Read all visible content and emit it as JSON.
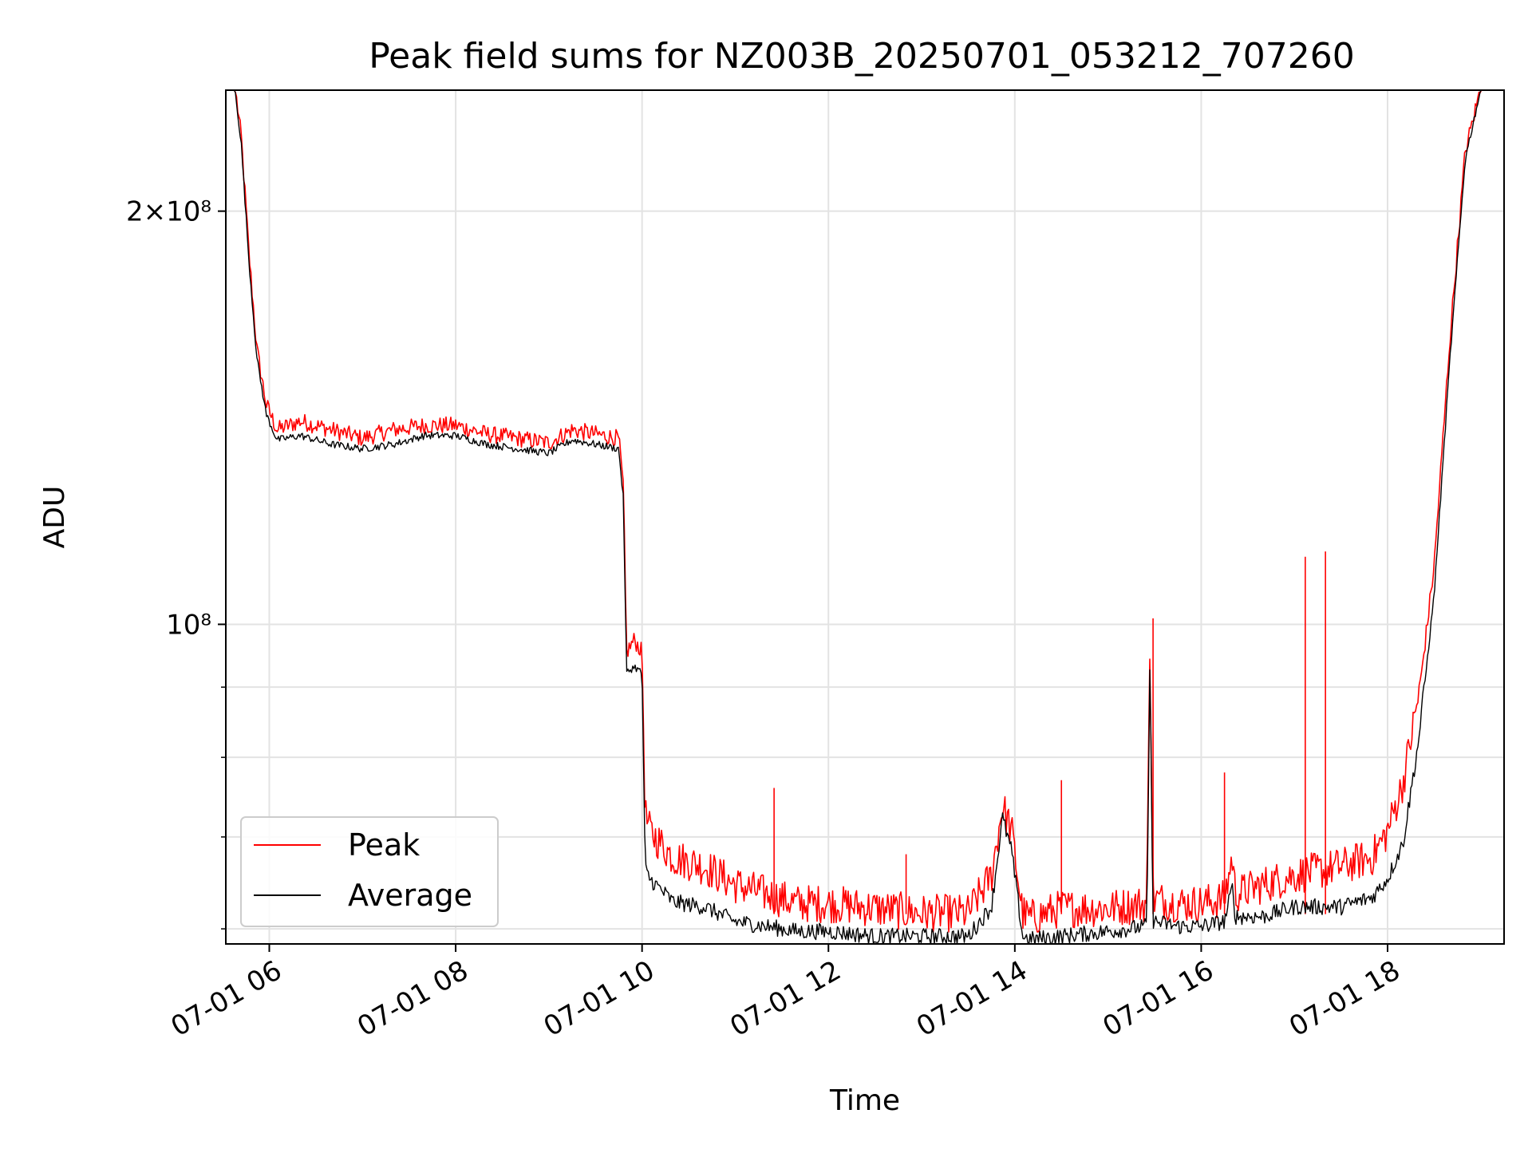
{
  "chart_data": {
    "type": "line",
    "title": "Peak field sums for NZ003B_20250701_053212_707260",
    "xlabel": "Time",
    "ylabel": "ADU",
    "yscale": "log",
    "ylim": [
      58500000,
      245000000
    ],
    "xlim": [
      "07-01 05:32",
      "07-01 19:15"
    ],
    "grid": true,
    "legend_position": "lower-left",
    "x_ticks": [
      "07-01 06",
      "07-01 08",
      "07-01 10",
      "07-01 12",
      "07-01 14",
      "07-01 16",
      "07-01 18"
    ],
    "y_tick_labels": [
      "2×10⁸",
      "10⁸"
    ],
    "y_tick_values": [
      200000000,
      100000000
    ],
    "y_minor_ticks": [
      60000000,
      70000000,
      80000000,
      90000000
    ],
    "series": [
      {
        "name": "Peak",
        "color": "#ff0000",
        "x": [
          "07-01 05:33",
          "07-01 05:38",
          "07-01 05:42",
          "07-01 05:47",
          "07-01 05:52",
          "07-01 05:58",
          "07-01 06:05",
          "07-01 06:20",
          "07-01 06:40",
          "07-01 07:00",
          "07-01 07:20",
          "07-01 07:40",
          "07-01 08:00",
          "07-01 08:20",
          "07-01 08:40",
          "07-01 09:00",
          "07-01 09:15",
          "07-01 09:30",
          "07-01 09:45",
          "07-01 09:48",
          "07-01 09:50",
          "07-01 09:55",
          "07-01 10:00",
          "07-01 10:02",
          "07-01 10:05",
          "07-01 10:20",
          "07-01 10:40",
          "07-01 11:00",
          "07-01 11:20",
          "07-01 11:40",
          "07-01 12:00",
          "07-01 12:30",
          "07-01 13:00",
          "07-01 13:30",
          "07-01 13:45",
          "07-01 13:52",
          "07-01 13:58",
          "07-01 14:05",
          "07-01 14:10",
          "07-01 14:30",
          "07-01 15:00",
          "07-01 15:25",
          "07-01 15:27",
          "07-01 15:29",
          "07-01 15:45",
          "07-01 16:00",
          "07-01 16:15",
          "07-01 16:20",
          "07-01 16:22",
          "07-01 16:40",
          "07-01 17:00",
          "07-01 17:30",
          "07-01 17:50",
          "07-01 18:00",
          "07-01 18:10",
          "07-01 18:20",
          "07-01 18:30",
          "07-01 18:40",
          "07-01 18:50",
          "07-01 19:00",
          "07-01 19:15"
        ],
        "y": [
          245000000,
          245000000,
          225000000,
          185000000,
          158000000,
          144000000,
          138000000,
          140000000,
          138000000,
          136000000,
          138000000,
          139000000,
          139000000,
          137000000,
          136000000,
          135000000,
          138000000,
          137000000,
          136000000,
          125000000,
          95000000,
          97000000,
          95000000,
          72000000,
          70000000,
          67000000,
          66000000,
          64000000,
          63000000,
          62000000,
          62000000,
          61500000,
          61000000,
          61000000,
          65000000,
          73000000,
          70000000,
          61000000,
          60500000,
          61500000,
          61500000,
          62000000,
          97000000,
          62500000,
          62000000,
          62000000,
          62500000,
          67000000,
          63000000,
          64000000,
          65000000,
          66000000,
          67000000,
          70000000,
          76000000,
          88000000,
          110000000,
          160000000,
          220000000,
          245000000,
          245000000
        ],
        "spikes": [
          {
            "x": "07-01 11:25",
            "y": 76000000
          },
          {
            "x": "07-01 12:50",
            "y": 68000000
          },
          {
            "x": "07-01 14:30",
            "y": 77000000
          },
          {
            "x": "07-01 15:29",
            "y": 101000000
          },
          {
            "x": "07-01 16:15",
            "y": 78000000
          },
          {
            "x": "07-01 17:07",
            "y": 112000000
          },
          {
            "x": "07-01 17:20",
            "y": 113000000
          }
        ]
      },
      {
        "name": "Average",
        "color": "#000000",
        "x": [
          "07-01 05:33",
          "07-01 05:38",
          "07-01 05:42",
          "07-01 05:47",
          "07-01 05:52",
          "07-01 05:58",
          "07-01 06:05",
          "07-01 06:20",
          "07-01 06:40",
          "07-01 07:00",
          "07-01 07:20",
          "07-01 07:40",
          "07-01 08:00",
          "07-01 08:20",
          "07-01 08:40",
          "07-01 09:00",
          "07-01 09:15",
          "07-01 09:30",
          "07-01 09:45",
          "07-01 09:48",
          "07-01 09:50",
          "07-01 09:55",
          "07-01 10:00",
          "07-01 10:02",
          "07-01 10:05",
          "07-01 10:20",
          "07-01 10:40",
          "07-01 11:00",
          "07-01 11:20",
          "07-01 11:40",
          "07-01 12:00",
          "07-01 12:30",
          "07-01 13:00",
          "07-01 13:30",
          "07-01 13:45",
          "07-01 13:52",
          "07-01 13:58",
          "07-01 14:05",
          "07-01 14:10",
          "07-01 14:30",
          "07-01 15:00",
          "07-01 15:25",
          "07-01 15:27",
          "07-01 15:29",
          "07-01 15:45",
          "07-01 16:00",
          "07-01 16:15",
          "07-01 16:20",
          "07-01 16:22",
          "07-01 16:40",
          "07-01 17:00",
          "07-01 17:30",
          "07-01 17:50",
          "07-01 18:00",
          "07-01 18:10",
          "07-01 18:20",
          "07-01 18:30",
          "07-01 18:40",
          "07-01 18:50",
          "07-01 19:00",
          "07-01 19:15"
        ],
        "y": [
          245000000,
          245000000,
          223000000,
          183000000,
          156000000,
          142000000,
          136000000,
          137000000,
          135000000,
          134000000,
          135000000,
          137000000,
          137000000,
          135000000,
          134000000,
          133000000,
          136000000,
          135000000,
          134000000,
          123000000,
          92000000,
          93000000,
          92000000,
          66000000,
          65000000,
          62500000,
          62000000,
          60500000,
          60000000,
          59500000,
          59500000,
          59000000,
          59000000,
          59000000,
          62000000,
          72000000,
          68000000,
          59000000,
          58700000,
          59000000,
          59500000,
          60000000,
          94000000,
          60500000,
          60000000,
          60000000,
          60500000,
          64000000,
          61000000,
          61000000,
          62000000,
          62000000,
          63000000,
          65000000,
          69000000,
          82000000,
          105000000,
          155000000,
          218000000,
          245000000,
          245000000
        ]
      }
    ]
  }
}
